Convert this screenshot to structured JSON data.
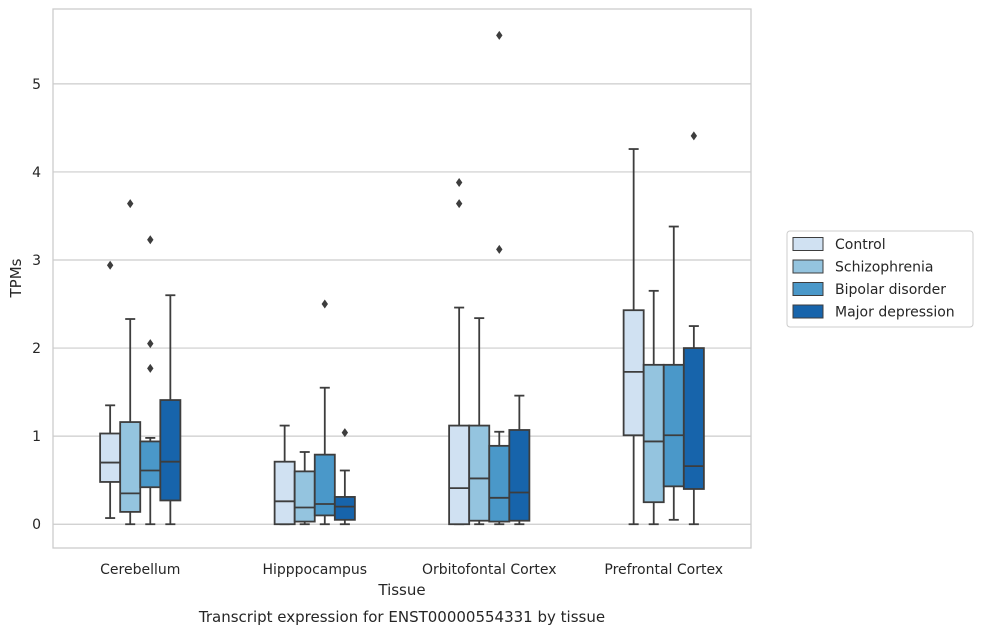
{
  "caption": "Transcript expression for ENST00000554331 by tissue",
  "chart_data": {
    "type": "box",
    "xlabel": "Tissue",
    "ylabel": "TPMs",
    "ylim": [
      -0.27,
      5.85
    ],
    "yticks": [
      0,
      1,
      2,
      3,
      4,
      5
    ],
    "grid": "horizontal",
    "legend_position": "right",
    "categories": [
      "Cerebellum",
      "Hipppocampus",
      "Orbitofontal Cortex",
      "Prefrontal Cortex"
    ],
    "series": [
      {
        "name": "Control",
        "color": "#d0e1f2",
        "boxes": [
          {
            "whisker_low": 0.07,
            "q1": 0.48,
            "median": 0.7,
            "q3": 1.03,
            "whisker_high": 1.35,
            "outliers": [
              2.94
            ]
          },
          {
            "whisker_low": 0.0,
            "q1": 0.0,
            "median": 0.26,
            "q3": 0.71,
            "whisker_high": 1.12,
            "outliers": []
          },
          {
            "whisker_low": 0.0,
            "q1": 0.0,
            "median": 0.41,
            "q3": 1.12,
            "whisker_high": 2.46,
            "outliers": [
              3.64,
              3.88
            ]
          },
          {
            "whisker_low": 0.0,
            "q1": 1.01,
            "median": 1.73,
            "q3": 2.43,
            "whisker_high": 4.26,
            "outliers": []
          }
        ]
      },
      {
        "name": "Schizophrenia",
        "color": "#94c4df",
        "boxes": [
          {
            "whisker_low": 0.0,
            "q1": 0.14,
            "median": 0.35,
            "q3": 1.16,
            "whisker_high": 2.33,
            "outliers": [
              3.64
            ]
          },
          {
            "whisker_low": 0.0,
            "q1": 0.03,
            "median": 0.19,
            "q3": 0.6,
            "whisker_high": 0.82,
            "outliers": []
          },
          {
            "whisker_low": 0.0,
            "q1": 0.04,
            "median": 0.52,
            "q3": 1.12,
            "whisker_high": 2.34,
            "outliers": []
          },
          {
            "whisker_low": 0.0,
            "q1": 0.25,
            "median": 0.94,
            "q3": 1.81,
            "whisker_high": 2.65,
            "outliers": []
          }
        ]
      },
      {
        "name": "Bipolar disorder",
        "color": "#4a98c9",
        "boxes": [
          {
            "whisker_low": 0.0,
            "q1": 0.42,
            "median": 0.61,
            "q3": 0.94,
            "whisker_high": 0.98,
            "outliers": [
              1.77,
              2.05,
              3.23
            ]
          },
          {
            "whisker_low": 0.0,
            "q1": 0.1,
            "median": 0.23,
            "q3": 0.79,
            "whisker_high": 1.55,
            "outliers": [
              2.5
            ]
          },
          {
            "whisker_low": 0.0,
            "q1": 0.03,
            "median": 0.3,
            "q3": 0.89,
            "whisker_high": 1.05,
            "outliers": [
              3.12,
              5.55
            ]
          },
          {
            "whisker_low": 0.05,
            "q1": 0.43,
            "median": 1.01,
            "q3": 1.81,
            "whisker_high": 3.38,
            "outliers": []
          }
        ]
      },
      {
        "name": "Major depression",
        "color": "#1764ab",
        "boxes": [
          {
            "whisker_low": 0.0,
            "q1": 0.27,
            "median": 0.71,
            "q3": 1.41,
            "whisker_high": 2.6,
            "outliers": []
          },
          {
            "whisker_low": 0.0,
            "q1": 0.05,
            "median": 0.2,
            "q3": 0.31,
            "whisker_high": 0.61,
            "outliers": [
              1.04
            ]
          },
          {
            "whisker_low": 0.0,
            "q1": 0.04,
            "median": 0.36,
            "q3": 1.07,
            "whisker_high": 1.46,
            "outliers": []
          },
          {
            "whisker_low": 0.0,
            "q1": 0.4,
            "median": 0.66,
            "q3": 2.0,
            "whisker_high": 2.25,
            "outliers": [
              4.41
            ]
          }
        ]
      }
    ]
  }
}
